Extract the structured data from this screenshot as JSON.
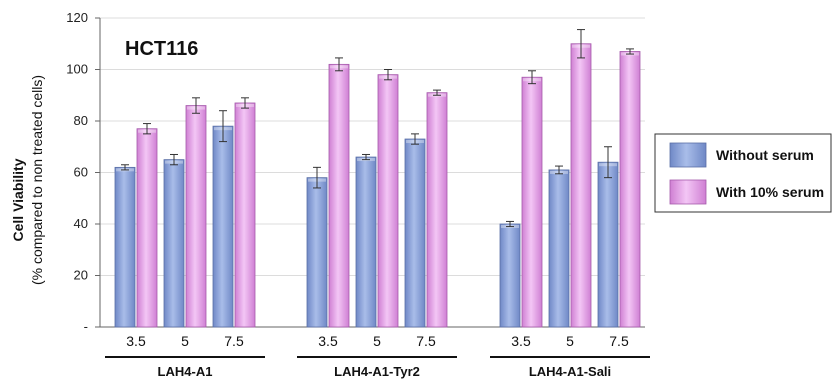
{
  "chart_data": {
    "type": "bar",
    "title": "HCT116",
    "ylabel_line1": "Cell Viability",
    "ylabel_line2": "(% compared to non treated cells)",
    "xlabel": "",
    "ylim": [
      0,
      120
    ],
    "yticks": [
      "-",
      "20",
      "40",
      "60",
      "80",
      "100",
      "120"
    ],
    "grid": true,
    "legend_position": "right",
    "groups": [
      {
        "label": "LAH4-A1",
        "categories": [
          "3.5",
          "5",
          "7.5"
        ]
      },
      {
        "label": "LAH4-A1-Tyr2",
        "categories": [
          "3.5",
          "5",
          "7.5"
        ]
      },
      {
        "label": "LAH4-A1-Sali",
        "categories": [
          "3.5",
          "5",
          "7.5"
        ]
      }
    ],
    "series": [
      {
        "name": "Without serum",
        "color": "#8fa7dc",
        "values": [
          [
            62,
            65,
            78
          ],
          [
            58,
            66,
            73
          ],
          [
            40,
            61,
            64
          ]
        ],
        "errors": [
          [
            1,
            2,
            6
          ],
          [
            4,
            1,
            2
          ],
          [
            1,
            1.5,
            6
          ]
        ]
      },
      {
        "name": "With 10% serum",
        "color": "#e5a4e8",
        "values": [
          [
            77,
            86,
            87
          ],
          [
            102,
            98,
            91
          ],
          [
            97,
            110,
            107
          ]
        ],
        "errors": [
          [
            2,
            3,
            2
          ],
          [
            2.5,
            2,
            1
          ],
          [
            2.5,
            5.5,
            1
          ]
        ]
      }
    ]
  }
}
